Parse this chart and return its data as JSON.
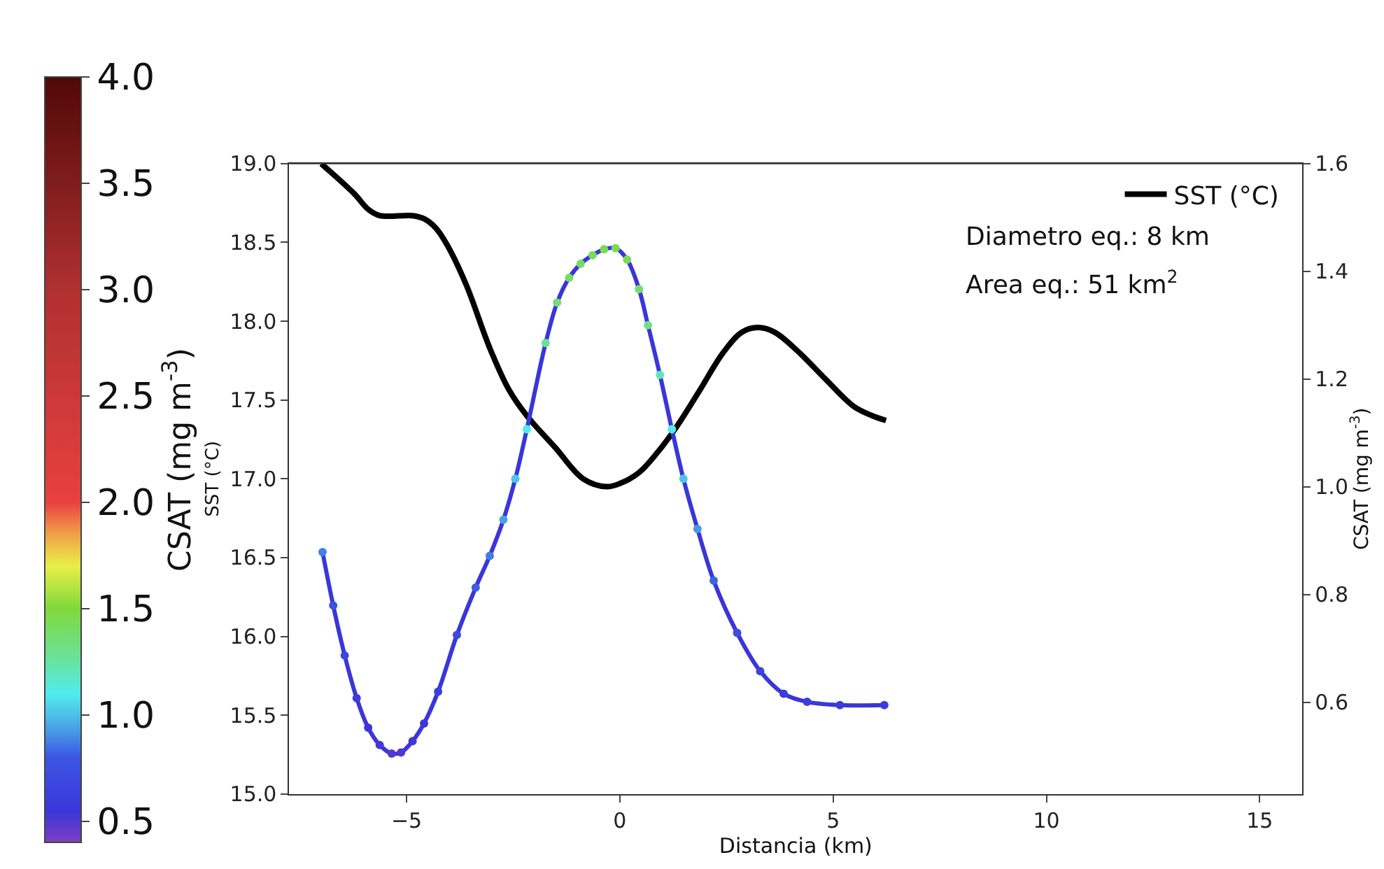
{
  "chart_data": {
    "type": "line",
    "xlabel": "Distancia (km)",
    "ylabel": "SST (°C)",
    "y2label": "CSAT (mg m$^{-3}$)",
    "clabel": "CSAT (mg m$^{-3}$)",
    "annotations": [
      "Diametro eq.: 8 km",
      "Area eq.: 51 km$^{2}$"
    ],
    "xlim": [
      -7.75,
      16.0
    ],
    "xticks": [
      {
        "value": -5,
        "label": "−5"
      },
      0,
      5,
      10,
      15
    ],
    "ylim": [
      15,
      19
    ],
    "yticks": [
      {
        "value": 15,
        "label": "15.0"
      },
      {
        "value": 15.5,
        "label": "15.5"
      },
      {
        "value": 16,
        "label": "16.0"
      },
      {
        "value": 16.5,
        "label": "16.5"
      },
      {
        "value": 17,
        "label": "17.0"
      },
      {
        "value": 17.5,
        "label": "17.5"
      },
      {
        "value": 18,
        "label": "18.0"
      },
      {
        "value": 18.5,
        "label": "18.5"
      },
      {
        "value": 19,
        "label": "19.0"
      }
    ],
    "y2lim": [
      0.43,
      1.6
    ],
    "y2ticks": [
      0.6,
      0.8,
      {
        "value": 1.0,
        "label": "1.0"
      },
      1.2,
      1.4,
      1.6
    ],
    "clim": [
      0.4,
      4.0
    ],
    "cticks": [
      0.5,
      {
        "value": 1.0,
        "label": "1.0"
      },
      1.5,
      {
        "value": 2.0,
        "label": "2.0"
      },
      2.5,
      {
        "value": 3.0,
        "label": "3.0"
      },
      3.5,
      {
        "value": 4.0,
        "label": "4.0"
      }
    ],
    "legend": "top right",
    "line_style": "solid",
    "series": [
      {
        "name": "SST (°C)",
        "color": "#000000",
        "x": [
          -7.0,
          -6.23,
          -5.9,
          -5.63,
          -4.86,
          -4.59,
          -4.31,
          -4.04,
          -3.6,
          -3.05,
          -2.61,
          -2.18,
          -1.52,
          -0.86,
          -0.31,
          0.0,
          0.45,
          0.89,
          1.33,
          1.87,
          2.42,
          2.86,
          3.24,
          3.63,
          4.17,
          4.83,
          5.48,
          5.92,
          6.24
        ],
        "values": [
          19.0,
          18.81,
          18.71,
          18.67,
          18.67,
          18.65,
          18.59,
          18.48,
          18.23,
          17.83,
          17.57,
          17.4,
          17.2,
          17.0,
          16.95,
          16.97,
          17.04,
          17.17,
          17.33,
          17.56,
          17.8,
          17.93,
          17.96,
          17.93,
          17.81,
          17.63,
          17.46,
          17.4,
          17.37
        ]
      },
      {
        "axis": "y2",
        "marker": "circle",
        "x": [
          -6.97,
          -6.72,
          -6.45,
          -6.17,
          -5.9,
          -5.63,
          -5.35,
          -5.13,
          -4.86,
          -4.59,
          -4.26,
          -3.82,
          -3.38,
          -3.05,
          -2.73,
          -2.45,
          -2.18,
          -1.74,
          -1.47,
          -1.19,
          -0.92,
          -0.64,
          -0.37,
          -0.1,
          0.17,
          0.45,
          0.66,
          0.94,
          1.22,
          1.49,
          1.82,
          2.2,
          2.75,
          3.29,
          3.84,
          4.39,
          5.16,
          6.2
        ],
        "values": [
          0.879,
          0.78,
          0.687,
          0.608,
          0.553,
          0.521,
          0.505,
          0.507,
          0.528,
          0.561,
          0.62,
          0.725,
          0.813,
          0.872,
          0.939,
          1.015,
          1.107,
          1.267,
          1.342,
          1.388,
          1.414,
          1.43,
          1.441,
          1.443,
          1.422,
          1.367,
          1.3,
          1.208,
          1.107,
          1.015,
          0.922,
          0.826,
          0.729,
          0.658,
          0.616,
          0.601,
          0.595,
          0.595
        ]
      }
    ]
  }
}
